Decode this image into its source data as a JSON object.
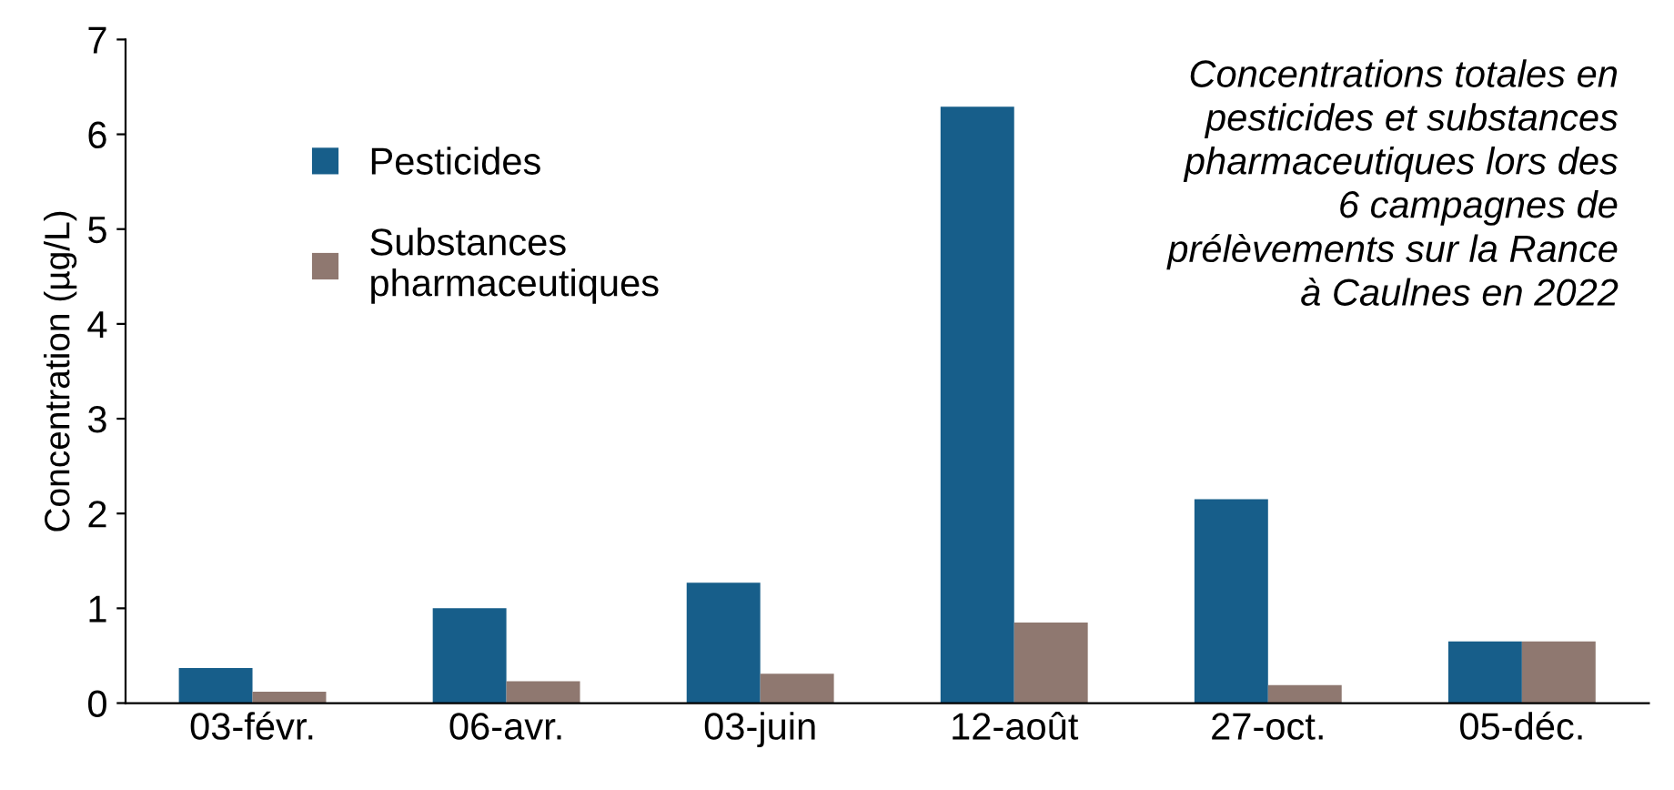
{
  "chart_data": {
    "type": "bar",
    "ylabel": "Concentration (µg/L)",
    "categories": [
      "03-févr.",
      "06-avr.",
      "03-juin",
      "12-août",
      "27-oct.",
      "05-déc."
    ],
    "series": [
      {
        "name": "Pesticides",
        "color": "#175e8a",
        "values": [
          0.37,
          1.0,
          1.27,
          6.29,
          2.15,
          0.65
        ]
      },
      {
        "name": "Substances\npharmaceutiques",
        "color": "#8f7870",
        "values": [
          0.12,
          0.23,
          0.31,
          0.85,
          0.19,
          0.65
        ]
      }
    ],
    "ylim": [
      0,
      7
    ],
    "yticks": [
      0,
      1,
      2,
      3,
      4,
      5,
      6,
      7
    ],
    "grid": false,
    "legend": "left",
    "annotations": [
      "Concentrations totales en\npesticides et substances\npharmaceutiques lors des\n6 campagnes de\nprélèvements sur la Rance\nà Caulnes en 2022"
    ]
  }
}
